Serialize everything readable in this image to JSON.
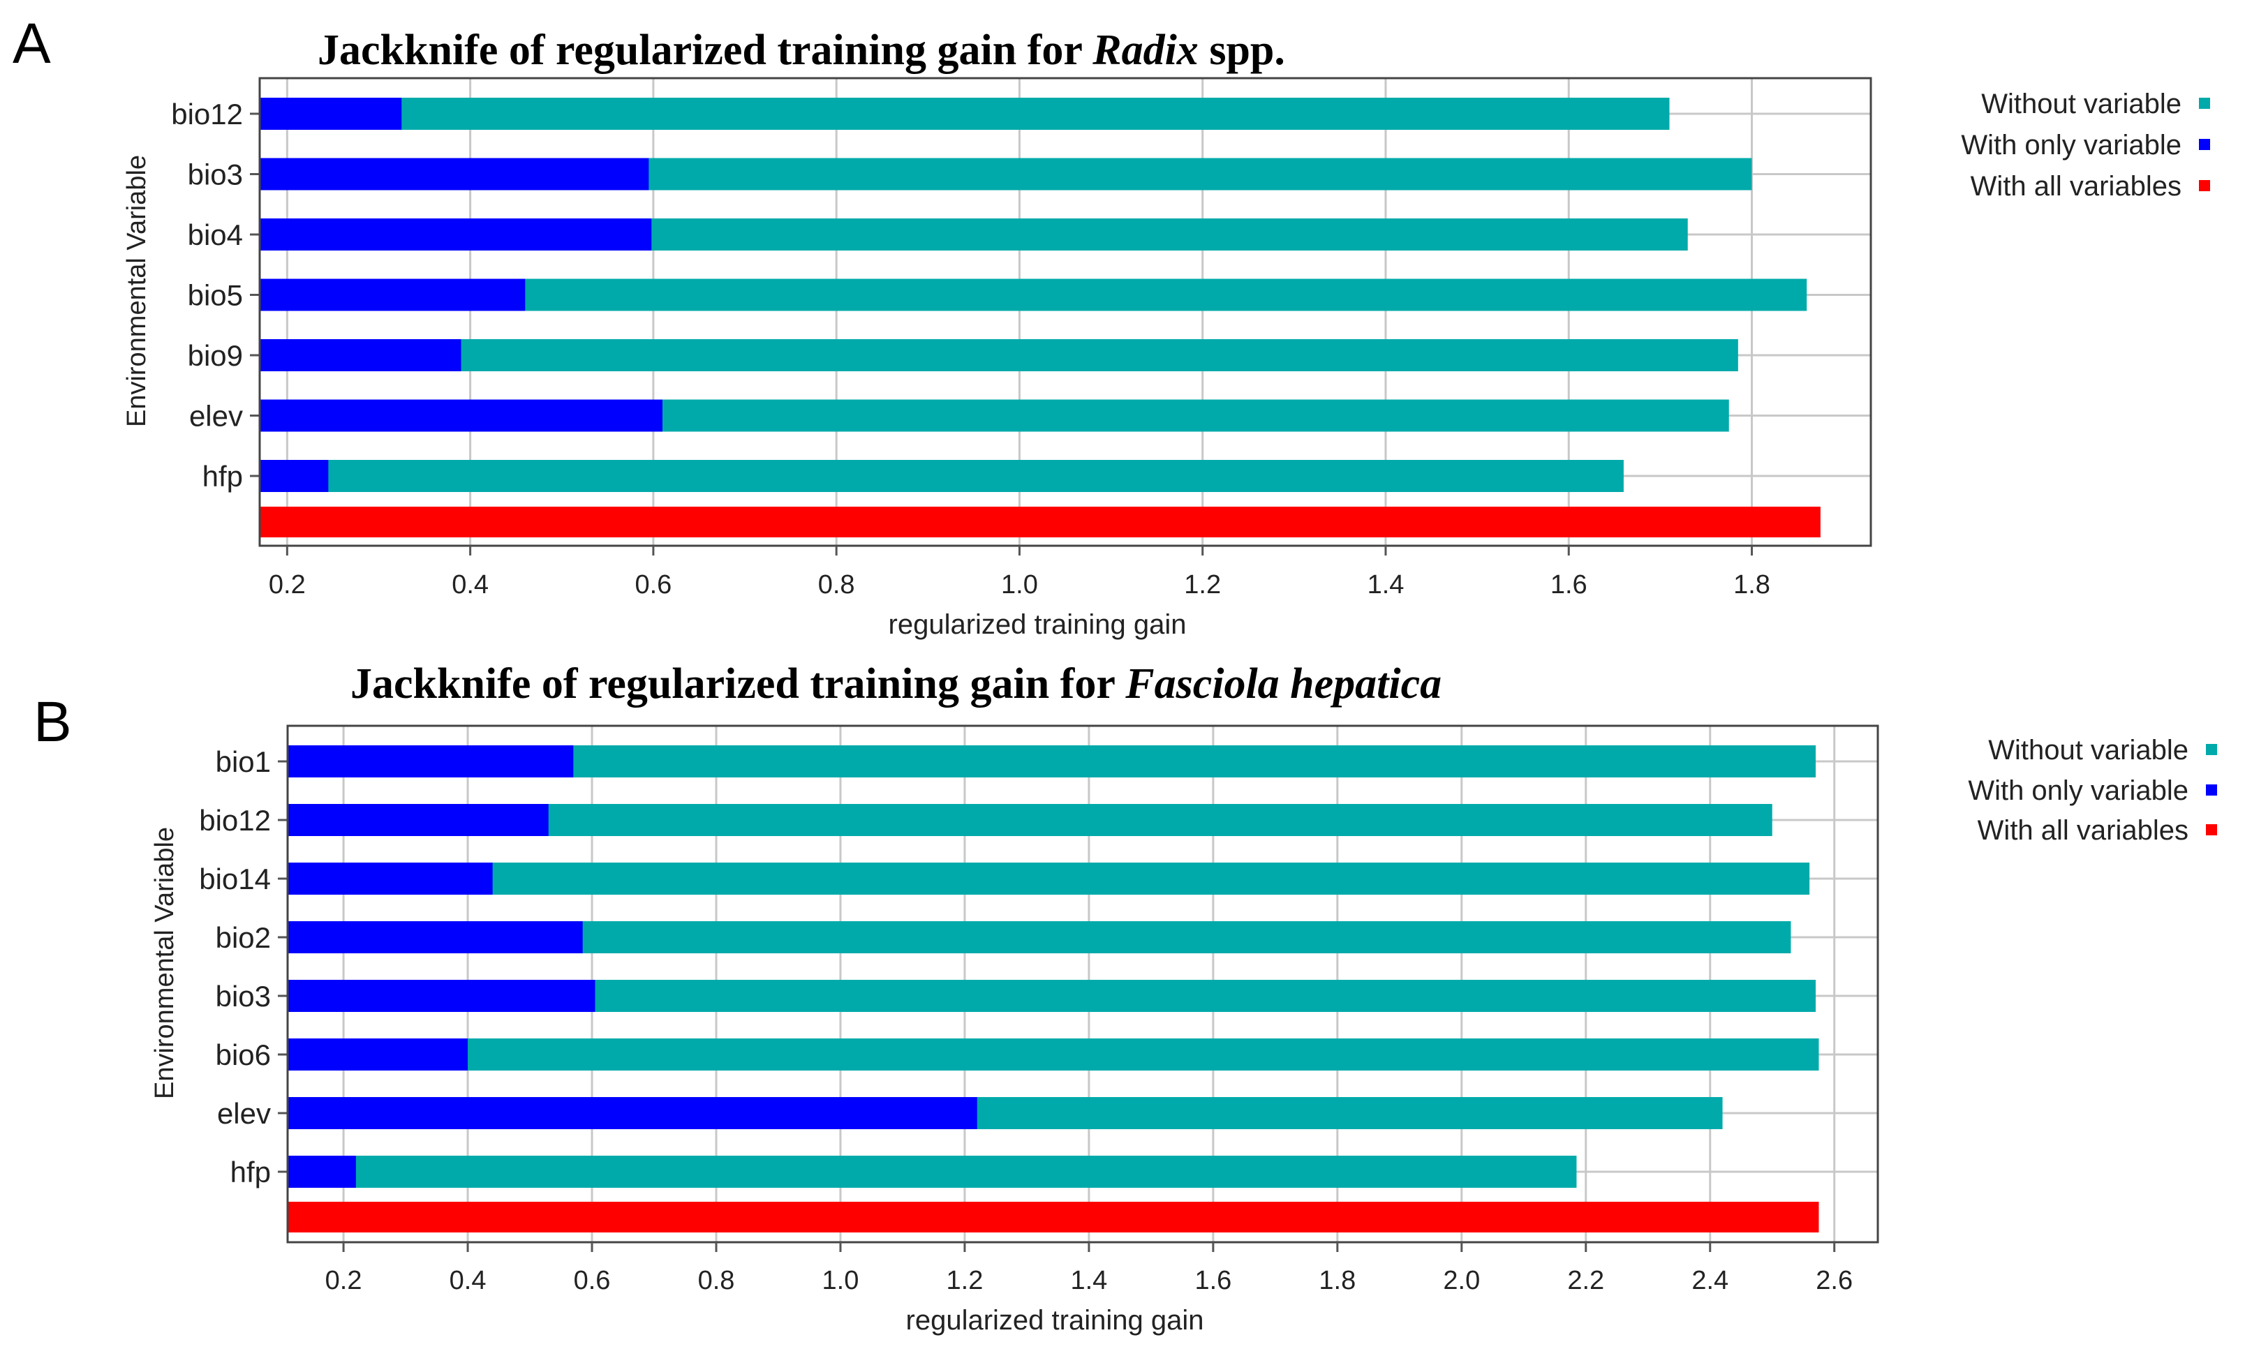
{
  "chart_data": [
    {
      "panel_label": "A",
      "type": "bar",
      "orientation": "horizontal",
      "stacked_overlay": true,
      "title": {
        "prefix": "Jackknife of regularized training gain for ",
        "italic": "Radix",
        "suffix": " spp."
      },
      "xlabel": "regularized training gain",
      "ylabel": "Environmental Variable",
      "xlim": [
        0.17,
        1.93
      ],
      "xticks": [
        "0.2",
        "0.4",
        "0.6",
        "0.8",
        "1.0",
        "1.2",
        "1.4",
        "1.6",
        "1.8"
      ],
      "xtick_values": [
        0.2,
        0.4,
        0.6,
        0.8,
        1.0,
        1.2,
        1.4,
        1.6,
        1.8
      ],
      "grid": true,
      "categories": [
        "bio12",
        "bio3",
        "bio4",
        "bio5",
        "bio9",
        "elev",
        "hfp"
      ],
      "series": [
        {
          "name": "Without variable",
          "color": "#00aaaa",
          "values": [
            1.71,
            1.8,
            1.73,
            1.86,
            1.785,
            1.775,
            1.66
          ]
        },
        {
          "name": "With only variable",
          "color": "#0000ff",
          "values": [
            0.325,
            0.595,
            0.598,
            0.46,
            0.39,
            0.61,
            0.245
          ]
        }
      ],
      "all_variables": {
        "name": "With all variables",
        "color": "#ff0000",
        "value": 1.875
      },
      "legend": {
        "position": "right",
        "entries": [
          {
            "label": "Without variable",
            "color": "#00aaaa"
          },
          {
            "label": "With only variable",
            "color": "#0000ff"
          },
          {
            "label": "With all variables",
            "color": "#ff0000"
          }
        ]
      }
    },
    {
      "panel_label": "B",
      "type": "bar",
      "orientation": "horizontal",
      "stacked_overlay": true,
      "title": {
        "prefix": "Jackknife of regularized training gain for ",
        "italic": "Fasciola hepatica",
        "suffix": ""
      },
      "xlabel": "regularized training gain",
      "ylabel": "Environmental Variable",
      "xlim": [
        0.11,
        2.67
      ],
      "xticks": [
        "0.2",
        "0.4",
        "0.6",
        "0.8",
        "1.0",
        "1.2",
        "1.4",
        "1.6",
        "1.8",
        "2.0",
        "2.2",
        "2.4",
        "2.6"
      ],
      "xtick_values": [
        0.2,
        0.4,
        0.6,
        0.8,
        1.0,
        1.2,
        1.4,
        1.6,
        1.8,
        2.0,
        2.2,
        2.4,
        2.6
      ],
      "grid": true,
      "categories": [
        "bio1",
        "bio12",
        "bio14",
        "bio2",
        "bio3",
        "bio6",
        "elev",
        "hfp"
      ],
      "series": [
        {
          "name": "Without variable",
          "color": "#00aaaa",
          "values": [
            2.57,
            2.5,
            2.56,
            2.53,
            2.57,
            2.575,
            2.42,
            2.185
          ]
        },
        {
          "name": "With only variable",
          "color": "#0000ff",
          "values": [
            0.57,
            0.53,
            0.44,
            0.585,
            0.605,
            0.4,
            1.22,
            0.22
          ]
        }
      ],
      "all_variables": {
        "name": "With all variables",
        "color": "#ff0000",
        "value": 2.575
      },
      "legend": {
        "position": "right",
        "entries": [
          {
            "label": "Without variable",
            "color": "#00aaaa"
          },
          {
            "label": "With only variable",
            "color": "#0000ff"
          },
          {
            "label": "With all variables",
            "color": "#ff0000"
          }
        ]
      }
    }
  ]
}
